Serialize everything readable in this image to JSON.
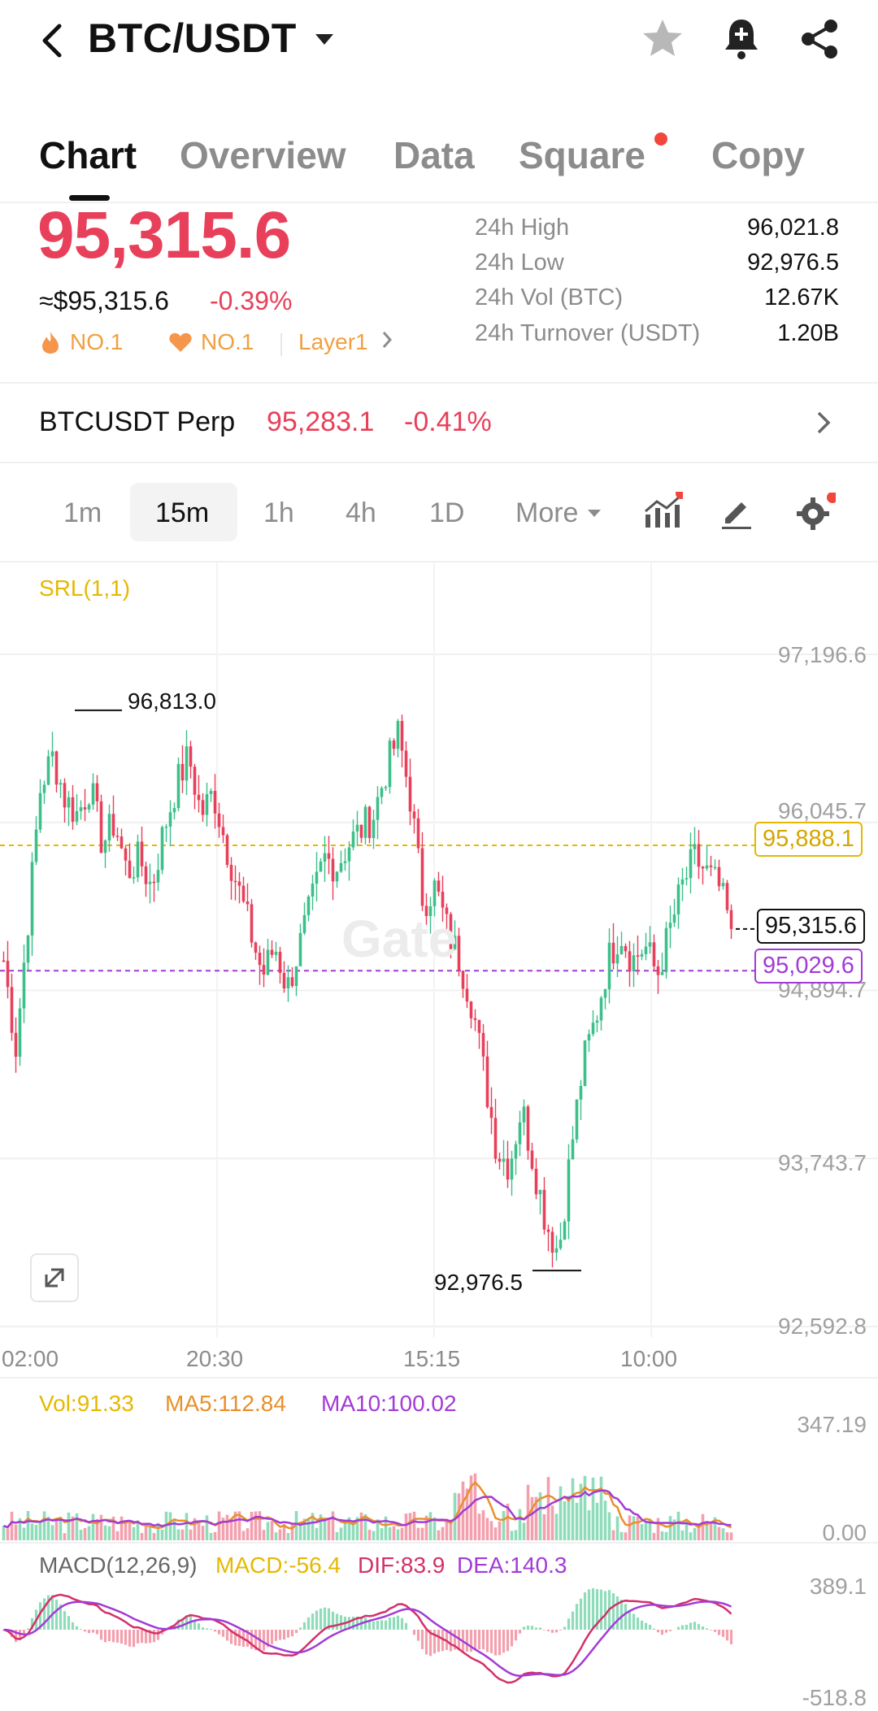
{
  "header": {
    "pair": "BTC/USDT"
  },
  "tabs": [
    {
      "label": "Chart",
      "active": true
    },
    {
      "label": "Overview",
      "active": false
    },
    {
      "label": "Data",
      "active": false
    },
    {
      "label": "Square",
      "active": false,
      "badge_dot": true
    },
    {
      "label": "Copy",
      "active": false
    }
  ],
  "price": {
    "last": "95,315.6",
    "fiat": "≈$95,315.6",
    "change": "-0.39%",
    "rank1": "NO.1",
    "rank2": "NO.1",
    "tag": "Layer1"
  },
  "stats": [
    {
      "label": "24h High",
      "value": "96,021.8"
    },
    {
      "label": "24h Low",
      "value": "92,976.5"
    },
    {
      "label": "24h Vol (BTC)",
      "value": "12.67K"
    },
    {
      "label": "24h Turnover (USDT)",
      "value": "1.20B"
    }
  ],
  "perp": {
    "label": "BTCUSDT Perp",
    "price": "95,283.1",
    "change": "-0.41%"
  },
  "intervals": {
    "items": [
      "1m",
      "15m",
      "1h",
      "4h",
      "1D",
      "More"
    ],
    "selected": "15m"
  },
  "chart": {
    "indicator": "SRL(1,1)",
    "watermark": "Gate",
    "y_labels": [
      "97,196.6",
      "96,045.7",
      "94,894.7",
      "93,743.7",
      "92,592.8"
    ],
    "x_labels": [
      "02:00",
      "20:30",
      "15:15",
      "10:00"
    ],
    "high_marker": "96,813.0",
    "low_marker": "92,976.5",
    "srl_upper": "95,888.1",
    "srl_lower": "95,029.6",
    "current": "95,315.6",
    "colors": {
      "up": "#3dbf8a",
      "down": "#e8405a",
      "srl_upper": "#e6b800",
      "srl_lower": "#a23bd6"
    }
  },
  "volume": {
    "vol": "Vol:91.33",
    "ma5": "MA5:112.84",
    "ma10": "MA10:100.02",
    "y_max": "347.19",
    "y_min": "0.00"
  },
  "macd": {
    "label": "MACD(12,26,9)",
    "macd": "MACD:-56.4",
    "dif": "DIF:83.9",
    "dea": "DEA:140.3",
    "y_top": "389.1",
    "y_bottom": "-518.8"
  },
  "chart_data": {
    "type": "candlestick",
    "interval": "15m",
    "ylim": [
      92592.8,
      97196.6
    ],
    "y_ticks": [
      97196.6,
      96045.7,
      94894.7,
      93743.7,
      92592.8
    ],
    "x_ticks": [
      "02:00",
      "20:30",
      "15:15",
      "10:00"
    ],
    "high": 96813.0,
    "low": 92976.5,
    "last": 95315.6,
    "srl_upper": 95888.1,
    "srl_lower": 95029.6,
    "close_path": [
      95100,
      94500,
      95400,
      96300,
      96500,
      96200,
      96100,
      96300,
      95900,
      96050,
      95700,
      95800,
      95600,
      96000,
      96300,
      96500,
      96100,
      96250,
      95900,
      95600,
      95300,
      95000,
      95200,
      94900,
      95200,
      95500,
      95800,
      95750,
      95900,
      96000,
      96100,
      96400,
      96650,
      96200,
      95500,
      95600,
      95300,
      95100,
      94800,
      94300,
      93800,
      93700,
      94100,
      93700,
      93300,
      93100,
      93800,
      94400,
      94700,
      95100,
      95300,
      95100,
      95200,
      95000,
      95300,
      95600,
      95800,
      95700,
      95600,
      95316
    ]
  }
}
